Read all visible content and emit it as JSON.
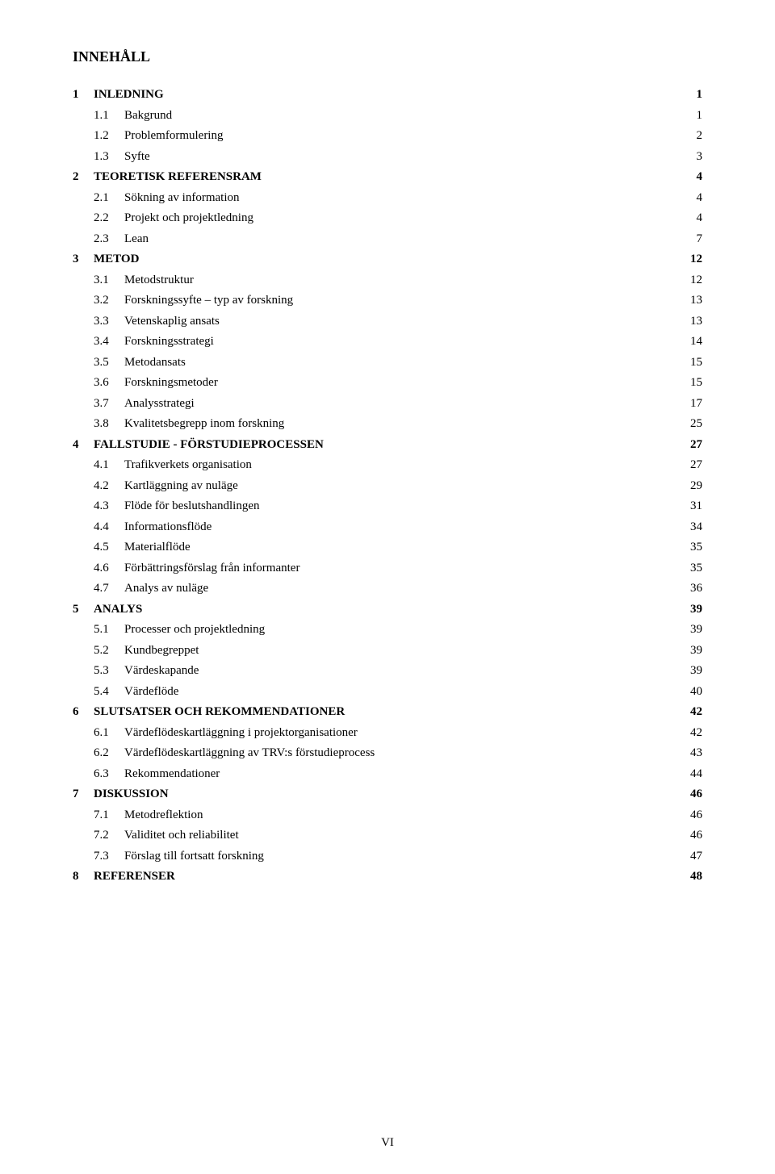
{
  "title": "INNEHÅLL",
  "page_label": "VI",
  "entries": [
    {
      "level": 0,
      "num": "1",
      "label": "INLEDNING",
      "page": "1"
    },
    {
      "level": 1,
      "num": "1.1",
      "label": "Bakgrund",
      "page": "1"
    },
    {
      "level": 1,
      "num": "1.2",
      "label": "Problemformulering",
      "page": "2"
    },
    {
      "level": 1,
      "num": "1.3",
      "label": "Syfte",
      "page": "3"
    },
    {
      "level": 0,
      "num": "2",
      "label": "TEORETISK REFERENSRAM",
      "page": "4"
    },
    {
      "level": 1,
      "num": "2.1",
      "label": "Sökning av information",
      "page": "4"
    },
    {
      "level": 1,
      "num": "2.2",
      "label": "Projekt och projektledning",
      "page": "4"
    },
    {
      "level": 1,
      "num": "2.3",
      "label": "Lean",
      "page": "7"
    },
    {
      "level": 0,
      "num": "3",
      "label": "METOD",
      "page": "12"
    },
    {
      "level": 1,
      "num": "3.1",
      "label": "Metodstruktur",
      "page": "12"
    },
    {
      "level": 1,
      "num": "3.2",
      "label": "Forskningssyfte – typ av forskning",
      "page": "13"
    },
    {
      "level": 1,
      "num": "3.3",
      "label": "Vetenskaplig ansats",
      "page": "13"
    },
    {
      "level": 1,
      "num": "3.4",
      "label": "Forskningsstrategi",
      "page": "14"
    },
    {
      "level": 1,
      "num": "3.5",
      "label": "Metodansats",
      "page": "15"
    },
    {
      "level": 1,
      "num": "3.6",
      "label": "Forskningsmetoder",
      "page": "15"
    },
    {
      "level": 1,
      "num": "3.7",
      "label": "Analysstrategi",
      "page": "17"
    },
    {
      "level": 1,
      "num": "3.8",
      "label": "Kvalitetsbegrepp inom forskning",
      "page": "25"
    },
    {
      "level": 0,
      "num": "4",
      "label": "FALLSTUDIE - FÖRSTUDIEPROCESSEN",
      "page": "27"
    },
    {
      "level": 1,
      "num": "4.1",
      "label": "Trafikverkets organisation",
      "page": "27"
    },
    {
      "level": 1,
      "num": "4.2",
      "label": "Kartläggning av nuläge",
      "page": "29"
    },
    {
      "level": 1,
      "num": "4.3",
      "label": "Flöde för beslutshandlingen",
      "page": "31"
    },
    {
      "level": 1,
      "num": "4.4",
      "label": "Informationsflöde",
      "page": "34"
    },
    {
      "level": 1,
      "num": "4.5",
      "label": "Materialflöde",
      "page": "35"
    },
    {
      "level": 1,
      "num": "4.6",
      "label": "Förbättringsförslag från informanter",
      "page": "35"
    },
    {
      "level": 1,
      "num": "4.7",
      "label": "Analys av nuläge",
      "page": "36"
    },
    {
      "level": 0,
      "num": "5",
      "label": "ANALYS",
      "page": "39"
    },
    {
      "level": 1,
      "num": "5.1",
      "label": "Processer och projektledning",
      "page": "39"
    },
    {
      "level": 1,
      "num": "5.2",
      "label": "Kundbegreppet",
      "page": "39"
    },
    {
      "level": 1,
      "num": "5.3",
      "label": "Värdeskapande",
      "page": "39"
    },
    {
      "level": 1,
      "num": "5.4",
      "label": "Värdeflöde",
      "page": "40"
    },
    {
      "level": 0,
      "num": "6",
      "label": "SLUTSATSER OCH REKOMMENDATIONER",
      "page": "42"
    },
    {
      "level": 1,
      "num": "6.1",
      "label": "Värdeflödeskartläggning i projektorganisationer",
      "page": "42"
    },
    {
      "level": 1,
      "num": "6.2",
      "label": "Värdeflödeskartläggning av TRV:s förstudieprocess",
      "page": "43"
    },
    {
      "level": 1,
      "num": "6.3",
      "label": "Rekommendationer",
      "page": "44"
    },
    {
      "level": 0,
      "num": "7",
      "label": "DISKUSSION",
      "page": "46"
    },
    {
      "level": 1,
      "num": "7.1",
      "label": "Metodreflektion",
      "page": "46"
    },
    {
      "level": 1,
      "num": "7.2",
      "label": "Validitet och reliabilitet",
      "page": "46"
    },
    {
      "level": 1,
      "num": "7.3",
      "label": "Förslag till fortsatt forskning",
      "page": "47"
    },
    {
      "level": 0,
      "num": "8",
      "label": "REFERENSER",
      "page": "48"
    }
  ]
}
